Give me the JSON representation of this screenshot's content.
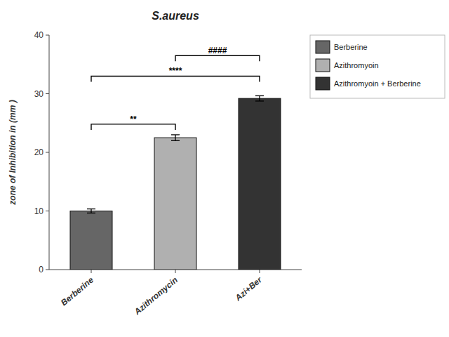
{
  "chart_data": {
    "type": "bar",
    "title": "S.aureus",
    "categories": [
      "Berberine",
      "Azithromycin",
      "Azi+Ber"
    ],
    "values": [
      10.0,
      22.5,
      29.2
    ],
    "errors": [
      0.35,
      0.5,
      0.45
    ],
    "colors": [
      "#666666",
      "#b0b0b0",
      "#333333"
    ],
    "ylabel": "zone of Inhibition in (mm )",
    "ylim": [
      0,
      40
    ],
    "yticks": [
      0,
      10,
      20,
      30,
      40
    ],
    "grid": false,
    "legend": "right",
    "legend_labels": [
      "Berberine",
      "Azithromyoin",
      "Azithromyoin + Berberine"
    ],
    "annotations": [
      {
        "x1": "Berberine",
        "x2": "Azithromycin",
        "y": 24.8,
        "label": "**"
      },
      {
        "x1": "Berberine",
        "x2": "Azi+Ber",
        "y": 33.0,
        "label": "****"
      },
      {
        "x1": "Azithromycin",
        "x2": "Azi+Ber",
        "y": 36.5,
        "label": "####"
      }
    ]
  }
}
